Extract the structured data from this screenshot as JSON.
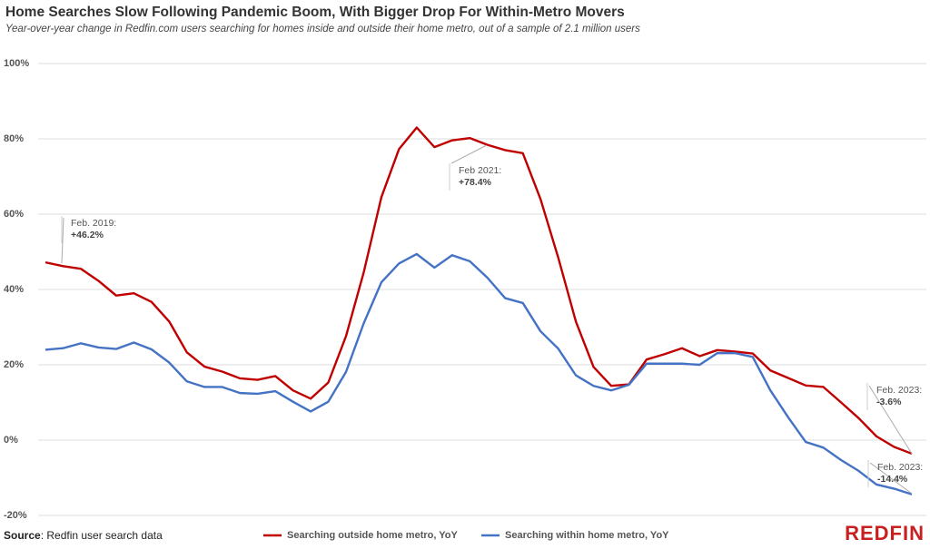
{
  "chart_data": {
    "type": "line",
    "title": "Home Searches Slow Following Pandemic Boom, With Bigger Drop For Within-Metro Movers",
    "subtitle": "Year-over-year change in Redfin.com users searching for homes inside and outside their home metro, out of a sample of 2.1 million users",
    "categories": [
      null,
      null,
      null,
      null,
      null,
      null,
      null,
      null,
      null,
      null,
      null,
      null,
      null,
      null,
      null,
      null,
      null,
      null,
      null,
      null,
      null,
      null,
      null,
      null,
      null,
      null,
      null,
      null,
      null,
      null,
      null,
      null,
      null,
      null,
      null,
      null,
      null,
      null,
      null,
      null,
      null,
      null,
      null,
      null,
      null,
      null,
      null,
      null,
      null,
      null
    ],
    "series": [
      {
        "name": "Searching outside home metro, YoY",
        "color": "#c00000",
        "values": [
          47.2,
          46.2,
          45.5,
          42.3,
          38.4,
          39,
          36.7,
          31.5,
          23.3,
          19.5,
          18.2,
          16.4,
          16,
          17,
          13.2,
          11,
          15.3,
          27.6,
          44.5,
          64.5,
          77.3,
          83,
          77.8,
          79.6,
          80.2,
          78.4,
          77,
          76.2,
          64,
          48.5,
          31.5,
          19.4,
          14.4,
          14.8,
          21.4,
          22.8,
          24.4,
          22.3,
          23.9,
          23.5,
          23,
          18.5,
          16.5,
          14.5,
          14.1,
          10,
          5.8,
          1,
          -1.8,
          -3.6
        ]
      },
      {
        "name": "Searching within home metro, YoY",
        "color": "#4472c4",
        "values": [
          24,
          24.4,
          25.7,
          24.6,
          24.2,
          25.9,
          24.1,
          20.6,
          15.6,
          14.1,
          14.1,
          12.5,
          12.3,
          13,
          10.2,
          7.6,
          10.2,
          18.1,
          31,
          41.9,
          46.9,
          49.4,
          45.8,
          49.1,
          47.5,
          43.1,
          37.7,
          36.4,
          28.9,
          24.3,
          17.2,
          14.4,
          13.2,
          14.7,
          20.3,
          20.3,
          20.3,
          20,
          23.1,
          23.1,
          22.1,
          13.2,
          6.1,
          -0.5,
          -2,
          -5.3,
          -8.2,
          -11.8,
          -12.9,
          -14.4
        ]
      }
    ],
    "ylim": [
      -20,
      100
    ],
    "yticks": [
      {
        "value": -20,
        "label": "-20%"
      },
      {
        "value": 0,
        "label": "0%"
      },
      {
        "value": 20,
        "label": "20%"
      },
      {
        "value": 40,
        "label": "40%"
      },
      {
        "value": 60,
        "label": "60%"
      },
      {
        "value": 80,
        "label": "80%"
      },
      {
        "value": 100,
        "label": "100%"
      }
    ],
    "grid": true,
    "annotations": [
      {
        "label": "Feb. 2019:",
        "value": "+46.2%"
      },
      {
        "label": "Feb 2021:",
        "value": "+78.4%"
      },
      {
        "label": "Feb. 2023:",
        "value": "-3.6%"
      },
      {
        "label": "Feb. 2023:",
        "value": "-14.4%"
      }
    ],
    "source_label": "Source",
    "source_text": ": Redfin user search data",
    "logo": "REDFIN"
  }
}
